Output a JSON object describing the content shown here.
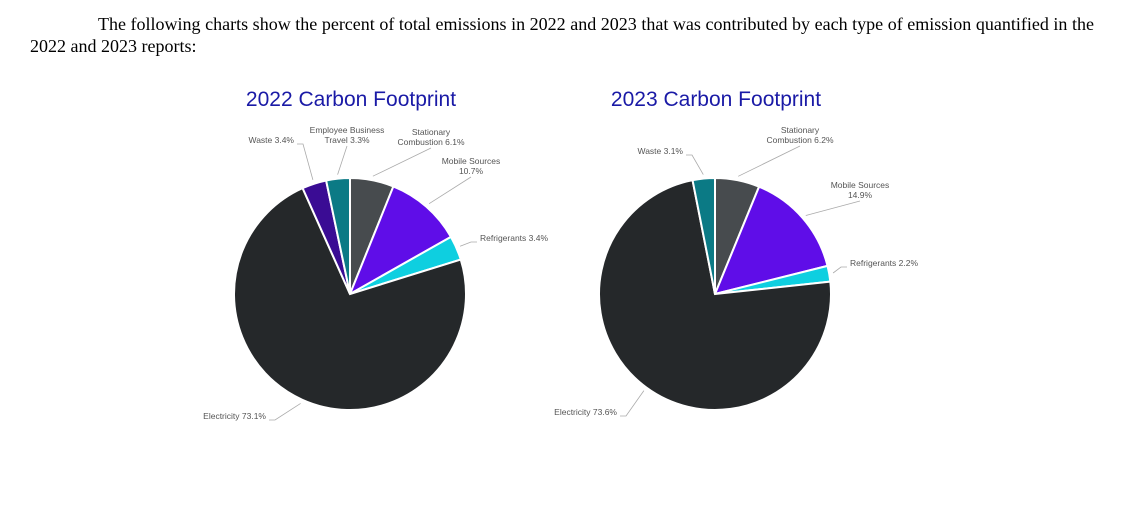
{
  "paragraph": "The following charts show the percent of total emissions in 2022 and 2023 that was contributed by each type of emission quantified in the 2022 and 2023 reports:",
  "chart_data": [
    {
      "type": "pie",
      "title": "2022 Carbon Footprint",
      "slices": [
        {
          "label": "Stationary Combustion",
          "lines": [
            "Stationary",
            "Combustion 6.1%"
          ],
          "value": 6.1,
          "color": "#474b4e"
        },
        {
          "label": "Mobile Sources",
          "lines": [
            "Mobile Sources",
            "10.7%"
          ],
          "value": 10.7,
          "color": "#5f0de8"
        },
        {
          "label": "Refrigerants",
          "lines": [
            "Refrigerants 3.4%"
          ],
          "value": 3.4,
          "color": "#0ecfe0"
        },
        {
          "label": "Electricity",
          "lines": [
            "Electricity 73.1%"
          ],
          "value": 73.1,
          "color": "#25282a"
        },
        {
          "label": "Waste",
          "lines": [
            "Waste 3.4%"
          ],
          "value": 3.4,
          "color": "#3a0c94"
        },
        {
          "label": "Employee Business Travel",
          "lines": [
            "Employee Business",
            "Travel 3.3%"
          ],
          "value": 3.3,
          "color": "#0b7a85"
        }
      ]
    },
    {
      "type": "pie",
      "title": "2023 Carbon Footprint",
      "slices": [
        {
          "label": "Stationary Combustion",
          "lines": [
            "Stationary",
            "Combustion 6.2%"
          ],
          "value": 6.2,
          "color": "#474b4e"
        },
        {
          "label": "Mobile Sources",
          "lines": [
            "Mobile Sources",
            "14.9%"
          ],
          "value": 14.9,
          "color": "#5f0de8"
        },
        {
          "label": "Refrigerants",
          "lines": [
            "Refrigerants 2.2%"
          ],
          "value": 2.2,
          "color": "#0ecfe0"
        },
        {
          "label": "Electricity",
          "lines": [
            "Electricity 73.6%"
          ],
          "value": 73.6,
          "color": "#25282a"
        },
        {
          "label": "Waste",
          "lines": [
            "Waste 3.1%"
          ],
          "value": 3.1,
          "color": "#0b7a85"
        }
      ]
    }
  ]
}
